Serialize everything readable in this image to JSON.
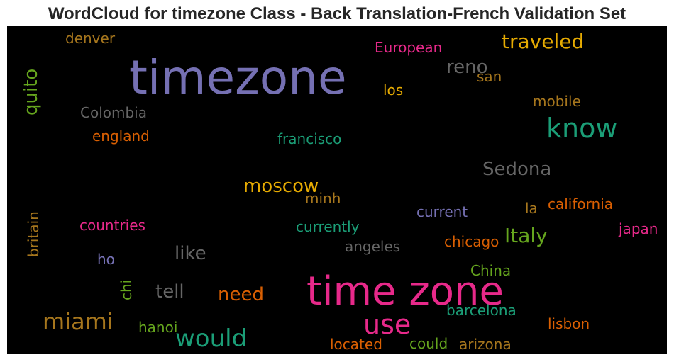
{
  "chart_data": {
    "type": "wordcloud",
    "title": "WordCloud for timezone Class - Back Translation-French Validation Set",
    "background": "#000000",
    "words": [
      {
        "text": "timezone",
        "color": "#7570b3",
        "vertical": false
      },
      {
        "text": "time zone",
        "color": "#e7298a",
        "vertical": false
      },
      {
        "text": "know",
        "color": "#1b9e77",
        "vertical": false
      },
      {
        "text": "use",
        "color": "#e7298a",
        "vertical": false
      },
      {
        "text": "would",
        "color": "#1b9e77",
        "vertical": false
      },
      {
        "text": "miami",
        "color": "#a6761d",
        "vertical": false
      },
      {
        "text": "traveled",
        "color": "#e6ab02",
        "vertical": false
      },
      {
        "text": "Italy",
        "color": "#66a61e",
        "vertical": false
      },
      {
        "text": "Sedona",
        "color": "#666666",
        "vertical": false
      },
      {
        "text": "moscow",
        "color": "#e6ab02",
        "vertical": false
      },
      {
        "text": "reno",
        "color": "#666666",
        "vertical": false
      },
      {
        "text": "like",
        "color": "#666666",
        "vertical": false
      },
      {
        "text": "tell",
        "color": "#666666",
        "vertical": false
      },
      {
        "text": "need",
        "color": "#d95f02",
        "vertical": false
      },
      {
        "text": "quito",
        "color": "#66a61e",
        "vertical": true
      },
      {
        "text": "European",
        "color": "#e7298a",
        "vertical": false
      },
      {
        "text": "denver",
        "color": "#a6761d",
        "vertical": false
      },
      {
        "text": "san",
        "color": "#a6761d",
        "vertical": false
      },
      {
        "text": "los",
        "color": "#e6ab02",
        "vertical": false
      },
      {
        "text": "mobile",
        "color": "#a6761d",
        "vertical": false
      },
      {
        "text": "Colombia",
        "color": "#666666",
        "vertical": false
      },
      {
        "text": "england",
        "color": "#d95f02",
        "vertical": false
      },
      {
        "text": "francisco",
        "color": "#1b9e77",
        "vertical": false
      },
      {
        "text": "minh",
        "color": "#a6761d",
        "vertical": false
      },
      {
        "text": "california",
        "color": "#d95f02",
        "vertical": false
      },
      {
        "text": "la",
        "color": "#a6761d",
        "vertical": false
      },
      {
        "text": "current",
        "color": "#7570b3",
        "vertical": false
      },
      {
        "text": "japan",
        "color": "#e7298a",
        "vertical": false
      },
      {
        "text": "britain",
        "color": "#a6761d",
        "vertical": true
      },
      {
        "text": "countries",
        "color": "#e7298a",
        "vertical": false
      },
      {
        "text": "currently",
        "color": "#1b9e77",
        "vertical": false
      },
      {
        "text": "chicago",
        "color": "#d95f02",
        "vertical": false
      },
      {
        "text": "angeles",
        "color": "#666666",
        "vertical": false
      },
      {
        "text": "ho",
        "color": "#7570b3",
        "vertical": false
      },
      {
        "text": "chi",
        "color": "#66a61e",
        "vertical": true
      },
      {
        "text": "China",
        "color": "#66a61e",
        "vertical": false
      },
      {
        "text": "barcelona",
        "color": "#1b9e77",
        "vertical": false
      },
      {
        "text": "hanoi",
        "color": "#66a61e",
        "vertical": false
      },
      {
        "text": "lisbon",
        "color": "#d95f02",
        "vertical": false
      },
      {
        "text": "located",
        "color": "#d95f02",
        "vertical": false
      },
      {
        "text": "could",
        "color": "#66a61e",
        "vertical": false
      },
      {
        "text": "arizona",
        "color": "#a6761d",
        "vertical": false
      }
    ]
  }
}
